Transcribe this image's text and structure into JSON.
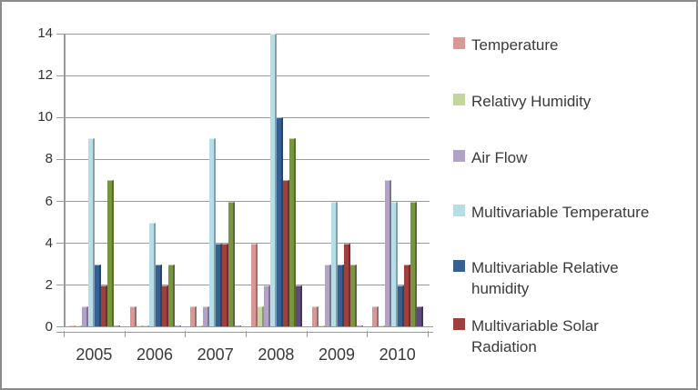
{
  "chart_data": {
    "type": "bar",
    "title": "",
    "xlabel": "",
    "ylabel": "",
    "categories": [
      "2005",
      "2006",
      "2007",
      "2008",
      "2009",
      "2010"
    ],
    "series": [
      {
        "name": "Temperature",
        "color": "#D99795",
        "values": [
          0.1,
          1,
          1,
          4,
          1,
          1
        ]
      },
      {
        "name": "Relativy Humidity",
        "color": "#C3D69B",
        "values": [
          0.1,
          0.1,
          0.1,
          1,
          0.1,
          0.1
        ]
      },
      {
        "name": "Air Flow",
        "color": "#B2A2C7",
        "values": [
          1,
          0.1,
          1,
          2,
          3,
          7
        ]
      },
      {
        "name": "Multivariable Temperature",
        "color": "#B7DEE8",
        "values": [
          9,
          5,
          9,
          14,
          6,
          6
        ]
      },
      {
        "name": "Multivariable Relative humidity",
        "color": "#376092",
        "values": [
          3,
          3,
          4,
          10,
          3,
          2
        ]
      },
      {
        "name": "Multivariable Solar Radiation",
        "color": "#9E413D",
        "values": [
          2,
          2,
          4,
          7,
          4,
          3
        ]
      },
      {
        "name": "(unlabeled olive series)",
        "color": "#78953F",
        "values": [
          7,
          3,
          6,
          9,
          3,
          6
        ],
        "in_legend": false
      },
      {
        "name": "(unlabeled purple series)",
        "color": "#604A7B",
        "values": [
          0.1,
          0.1,
          0.1,
          2,
          0.1,
          1
        ],
        "in_legend": false
      }
    ],
    "ylim": [
      0,
      14
    ],
    "yticks": [
      0,
      2,
      4,
      6,
      8,
      10,
      12,
      14
    ],
    "grid": "horizontal",
    "legend_position": "right"
  },
  "legend": {
    "items": [
      {
        "label": "Temperature",
        "color": "#D99795"
      },
      {
        "label": "Relativy Humidity",
        "color": "#C3D69B"
      },
      {
        "label": "Air Flow",
        "color": "#B2A2C7"
      },
      {
        "label": "Multivariable Temperature",
        "color": "#B7DEE8"
      },
      {
        "label": "Multivariable  Relative humidity",
        "color": "#376092"
      },
      {
        "label": "Multivariable  Solar Radiation",
        "color": "#9E413D"
      }
    ]
  }
}
